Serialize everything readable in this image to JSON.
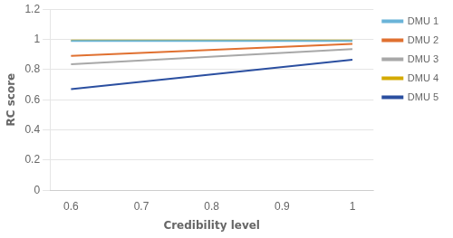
{
  "chart_data": {
    "type": "line",
    "xlabel": "Credibility level",
    "ylabel": "RC score",
    "x": [
      0.6,
      1
    ],
    "series": [
      {
        "name": "DMU 1",
        "color": "#6ab4d8",
        "values": [
          0.99,
          0.99
        ]
      },
      {
        "name": "DMU 2",
        "color": "#e07030",
        "values": [
          0.89,
          0.97
        ]
      },
      {
        "name": "DMU 3",
        "color": "#a8a8a8",
        "values": [
          0.835,
          0.935
        ]
      },
      {
        "name": "DMU 4",
        "color": "#d4aa00",
        "values": [
          0.993,
          0.993
        ]
      },
      {
        "name": "DMU 5",
        "color": "#2b4fa0",
        "values": [
          0.67,
          0.865
        ]
      }
    ],
    "xlim": [
      0.57,
      1.03
    ],
    "ylim": [
      0,
      1.2
    ],
    "xticks": [
      0.6,
      0.7,
      0.8,
      0.9,
      1
    ],
    "yticks": [
      0,
      0.2,
      0.4,
      0.6,
      0.8,
      1,
      1.2
    ],
    "grid": "y",
    "legend": "right"
  }
}
